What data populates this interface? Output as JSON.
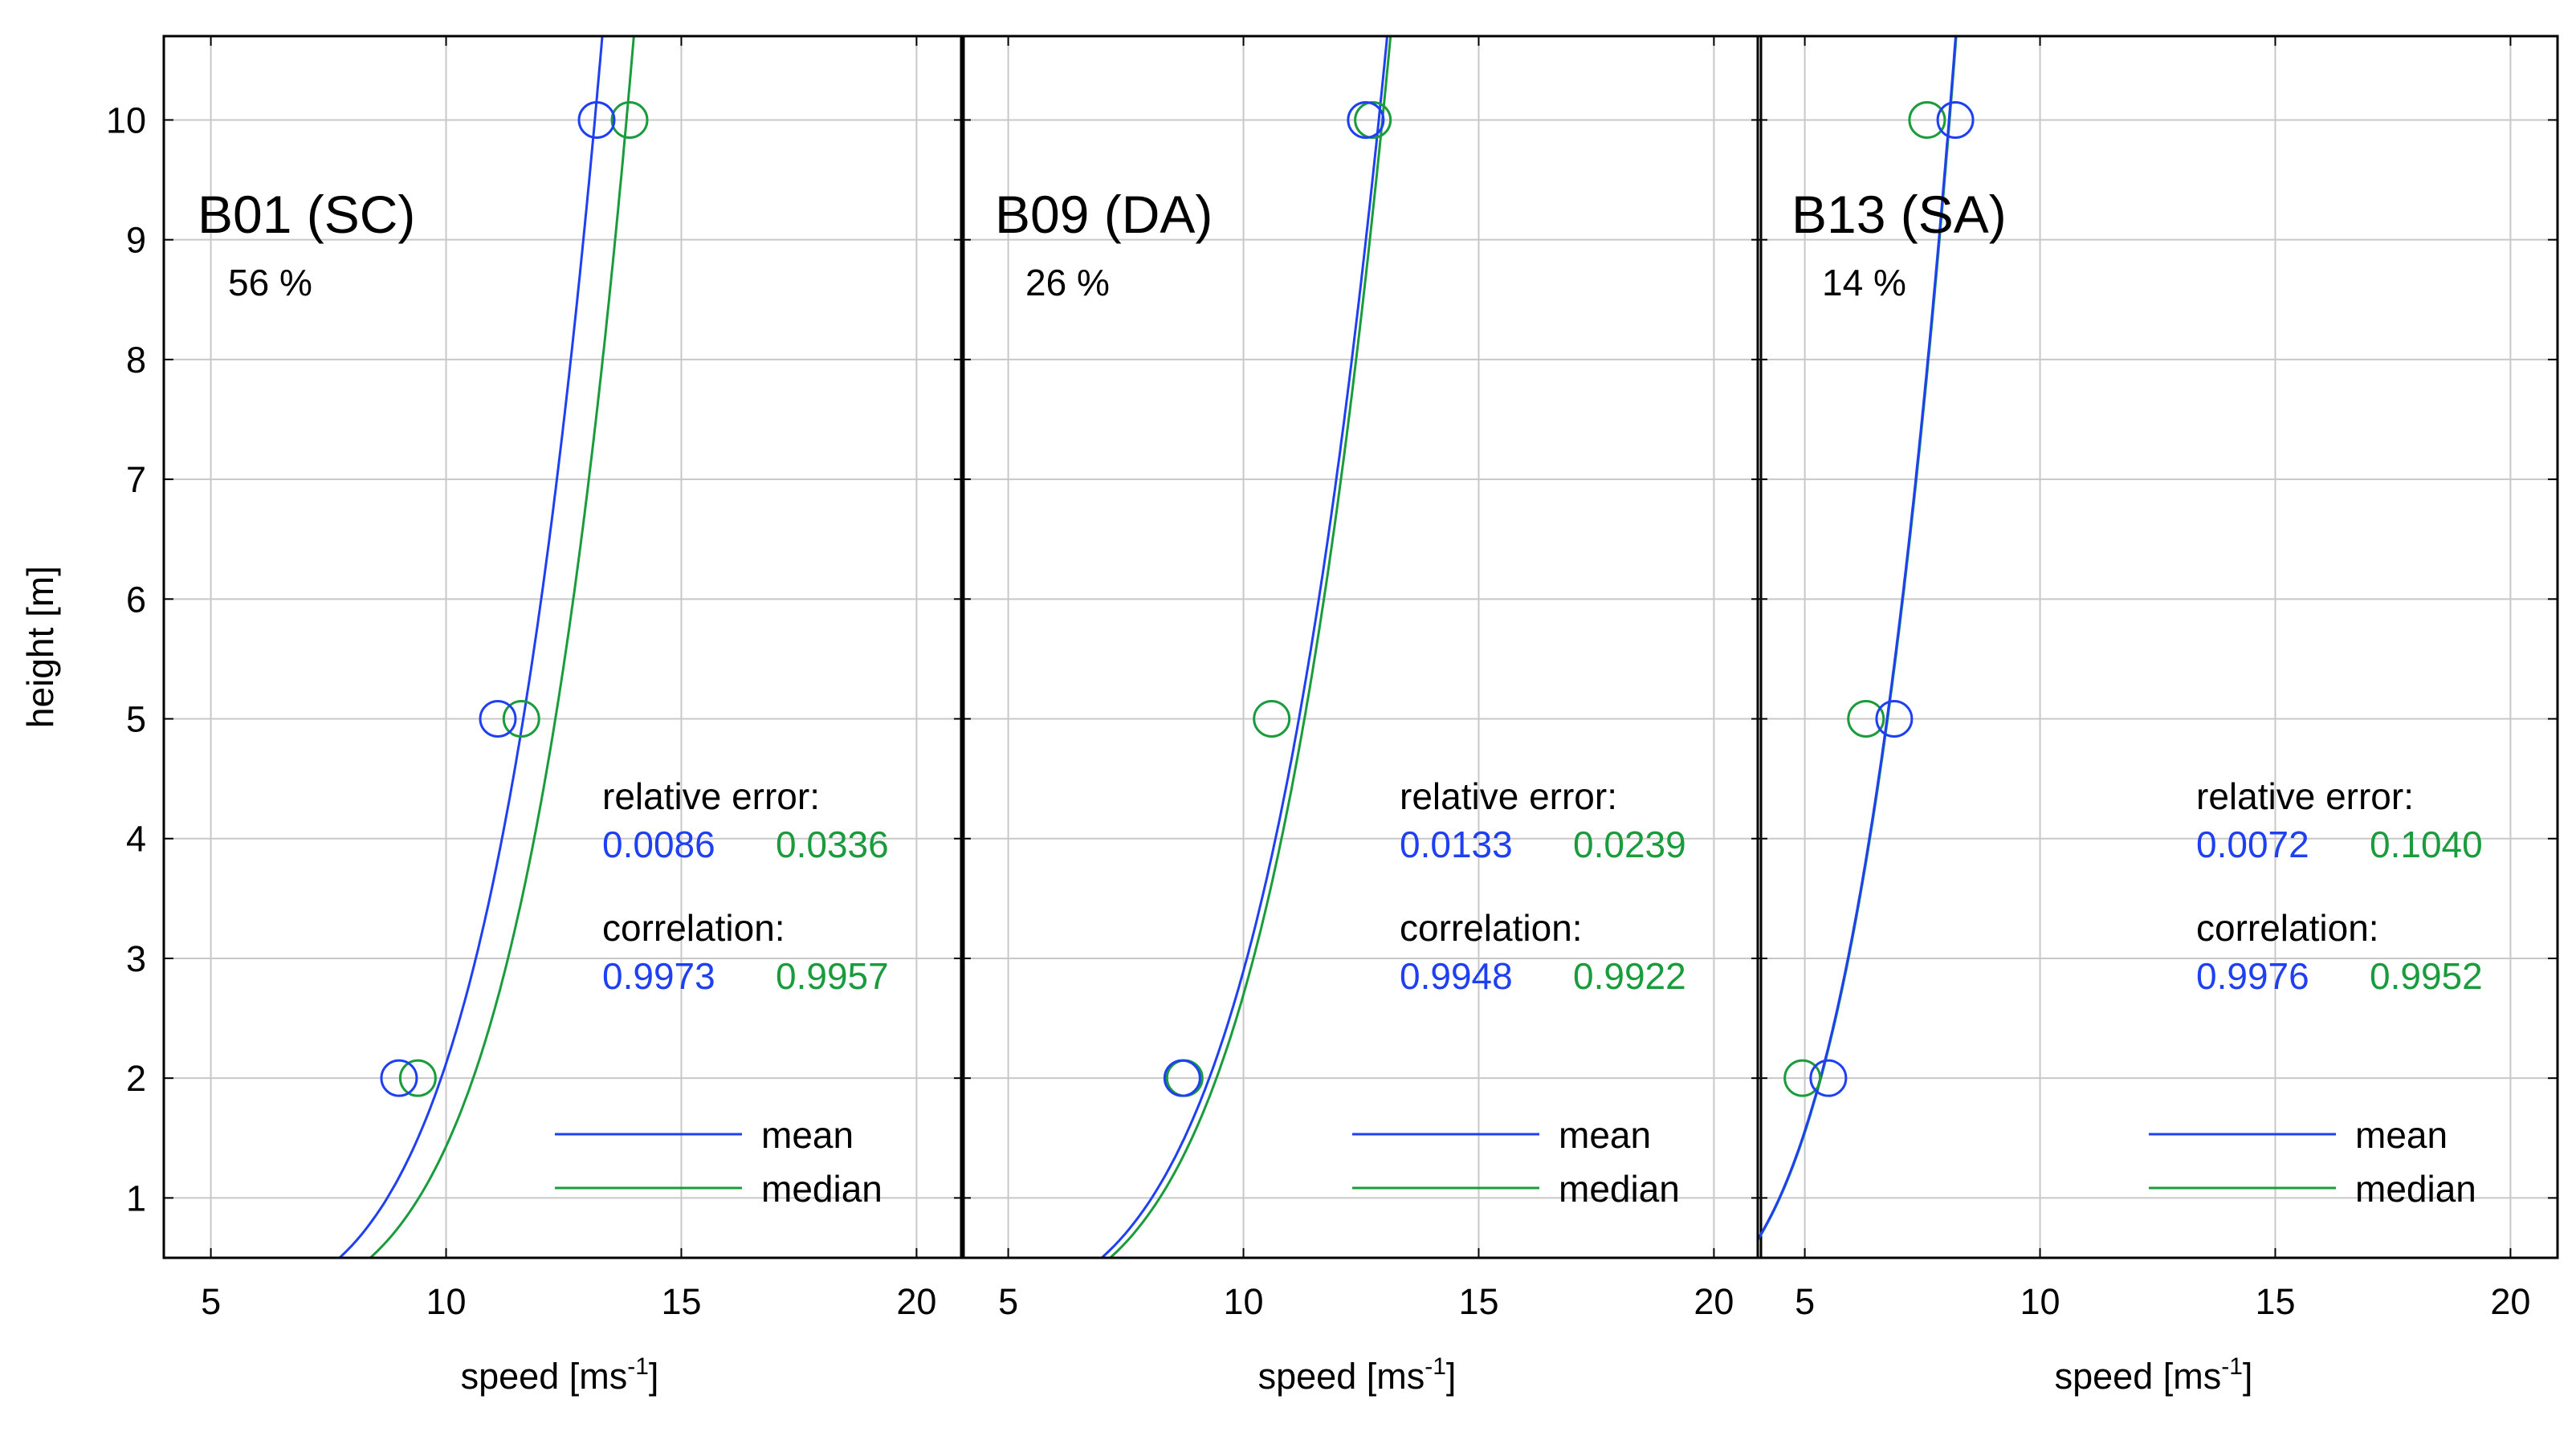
{
  "colors": {
    "mean": "#1f3ff2",
    "median": "#1a9b3c",
    "grid": "#c8c8c8",
    "axis": "#000000",
    "text": "#000000"
  },
  "chart_data": {
    "type": "line",
    "shared": {
      "ylabel": "height [m]",
      "xlabel": "speed [ms",
      "xlabel_sup": "-1",
      "xlabel_end": "]",
      "xlim": [
        4,
        21
      ],
      "ylim": [
        0.5,
        10.7
      ],
      "xticks": [
        5,
        10,
        15,
        20
      ],
      "yticks": [
        1,
        2,
        3,
        4,
        5,
        6,
        7,
        8,
        9,
        10
      ],
      "legend": {
        "mean_label": "mean",
        "median_label": "median",
        "position": "bottom-right"
      },
      "error_heading": "relative error:",
      "correlation_heading": "correlation:"
    },
    "panels": [
      {
        "title": "B01 (SC)",
        "percent": "56 %",
        "mean_points": [
          {
            "x": 9.0,
            "y": 2
          },
          {
            "x": 11.1,
            "y": 5
          },
          {
            "x": 13.2,
            "y": 10
          }
        ],
        "median_points": [
          {
            "x": 9.4,
            "y": 2
          },
          {
            "x": 11.6,
            "y": 5
          },
          {
            "x": 13.9,
            "y": 10
          }
        ],
        "mean_curve": {
          "a": 8.75,
          "b": 0.1773
        },
        "median_curve": {
          "a": 9.42,
          "b": 0.1669
        },
        "relative_error": {
          "mean": "0.0086",
          "median": "0.0336"
        },
        "correlation": {
          "mean": "0.9973",
          "median": "0.9957"
        }
      },
      {
        "title": "B09 (DA)",
        "percent": "26 %",
        "mean_points": [
          {
            "x": 8.7,
            "y": 2
          },
          {
            "x": 12.6,
            "y": 10
          }
        ],
        "median_points": [
          {
            "x": 8.75,
            "y": 2
          },
          {
            "x": 10.6,
            "y": 5
          },
          {
            "x": 12.75,
            "y": 10
          }
        ],
        "mean_curve": {
          "a": 8.05,
          "b": 0.204
        },
        "median_curve": {
          "a": 8.22,
          "b": 0.1975
        },
        "relative_error": {
          "mean": "0.0133",
          "median": "0.0239"
        },
        "correlation": {
          "mean": "0.9948",
          "median": "0.9922"
        }
      },
      {
        "title": "B13 (SA)",
        "percent": "14 %",
        "mean_points": [
          {
            "x": 5.5,
            "y": 2
          },
          {
            "x": 6.9,
            "y": 5
          },
          {
            "x": 8.2,
            "y": 10
          }
        ],
        "median_points": [
          {
            "x": 4.95,
            "y": 2
          },
          {
            "x": 6.3,
            "y": 5
          },
          {
            "x": 7.6,
            "y": 10
          }
        ],
        "mean_curve": {
          "a": 4.46,
          "b": 0.2573
        },
        "median_curve": {
          "a": 4.47,
          "b": 0.257
        },
        "relative_error": {
          "mean": "0.0072",
          "median": "0.1040"
        },
        "correlation": {
          "mean": "0.9976",
          "median": "0.9952"
        }
      }
    ]
  }
}
